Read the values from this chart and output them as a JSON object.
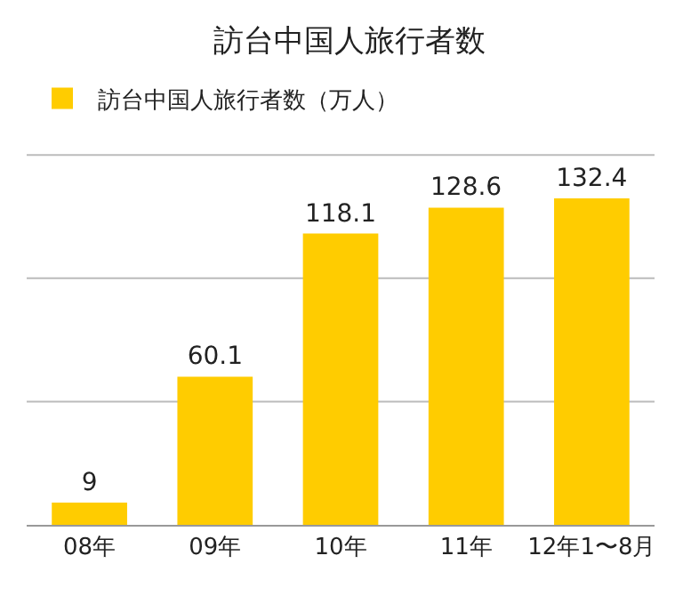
{
  "chart_data": {
    "type": "bar",
    "title": "訪台中国人旅行者数",
    "categories": [
      "08年",
      "09年",
      "10年",
      "11年",
      "12年1〜8月"
    ],
    "series": [
      {
        "name": "訪台中国人旅行者数（万人）",
        "color": "#ffcc00",
        "values": [
          9,
          60.1,
          118.1,
          128.6,
          132.4
        ]
      }
    ],
    "data_labels": true,
    "ylim": [
      0,
      150
    ],
    "ref_lines": [
      {
        "axis": "y",
        "value": 50,
        "color": "#bbbbbb"
      },
      {
        "axis": "y",
        "value": 100,
        "color": "#bbbbbb"
      },
      {
        "axis": "y",
        "value": 150,
        "color": "#bbbbbb"
      }
    ],
    "tick_labels": "x",
    "legend": "top left"
  }
}
